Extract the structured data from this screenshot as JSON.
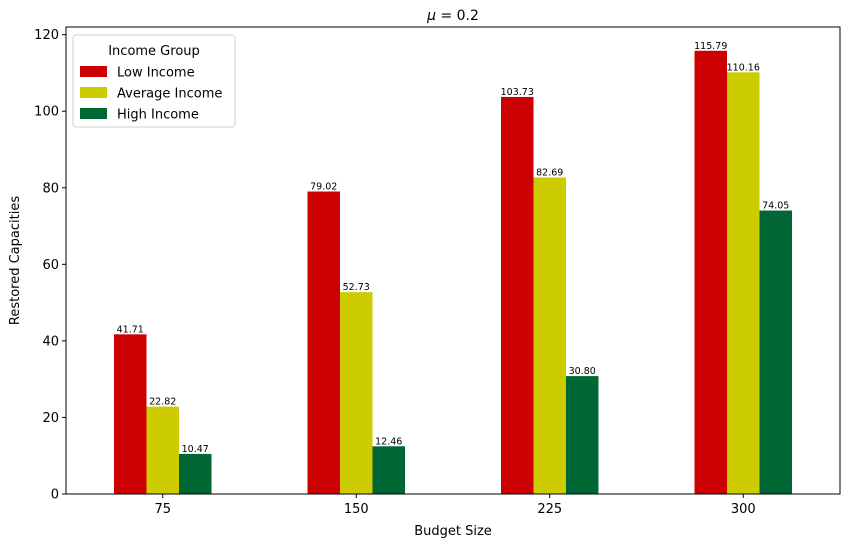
{
  "chart_data": {
    "type": "bar",
    "title_prefix": "μ",
    "title_suffix": " = 0.2",
    "title": "μ = 0.2",
    "xlabel": "Budget Size",
    "ylabel": "Restored Capacities",
    "categories": [
      "75",
      "150",
      "225",
      "300"
    ],
    "ylim": [
      0,
      122
    ],
    "yticks": [
      0,
      20,
      40,
      60,
      80,
      100,
      120
    ],
    "grid": false,
    "legend": {
      "title": "Income Group",
      "placement": "top-left"
    },
    "series": [
      {
        "name": "Low Income",
        "color": "#cc0000",
        "values": [
          41.71,
          79.02,
          103.73,
          115.79
        ],
        "labels": [
          "41.71",
          "79.02",
          "103.73",
          "115.79"
        ]
      },
      {
        "name": "Average Income",
        "color": "#cccc00",
        "values": [
          22.82,
          52.73,
          82.69,
          110.16
        ],
        "labels": [
          "22.82",
          "52.73",
          "82.69",
          "110.16"
        ]
      },
      {
        "name": "High Income",
        "color": "#006633",
        "values": [
          10.47,
          12.46,
          30.8,
          74.05
        ],
        "labels": [
          "10.47",
          "12.46",
          "30.80",
          "74.05"
        ]
      }
    ]
  }
}
